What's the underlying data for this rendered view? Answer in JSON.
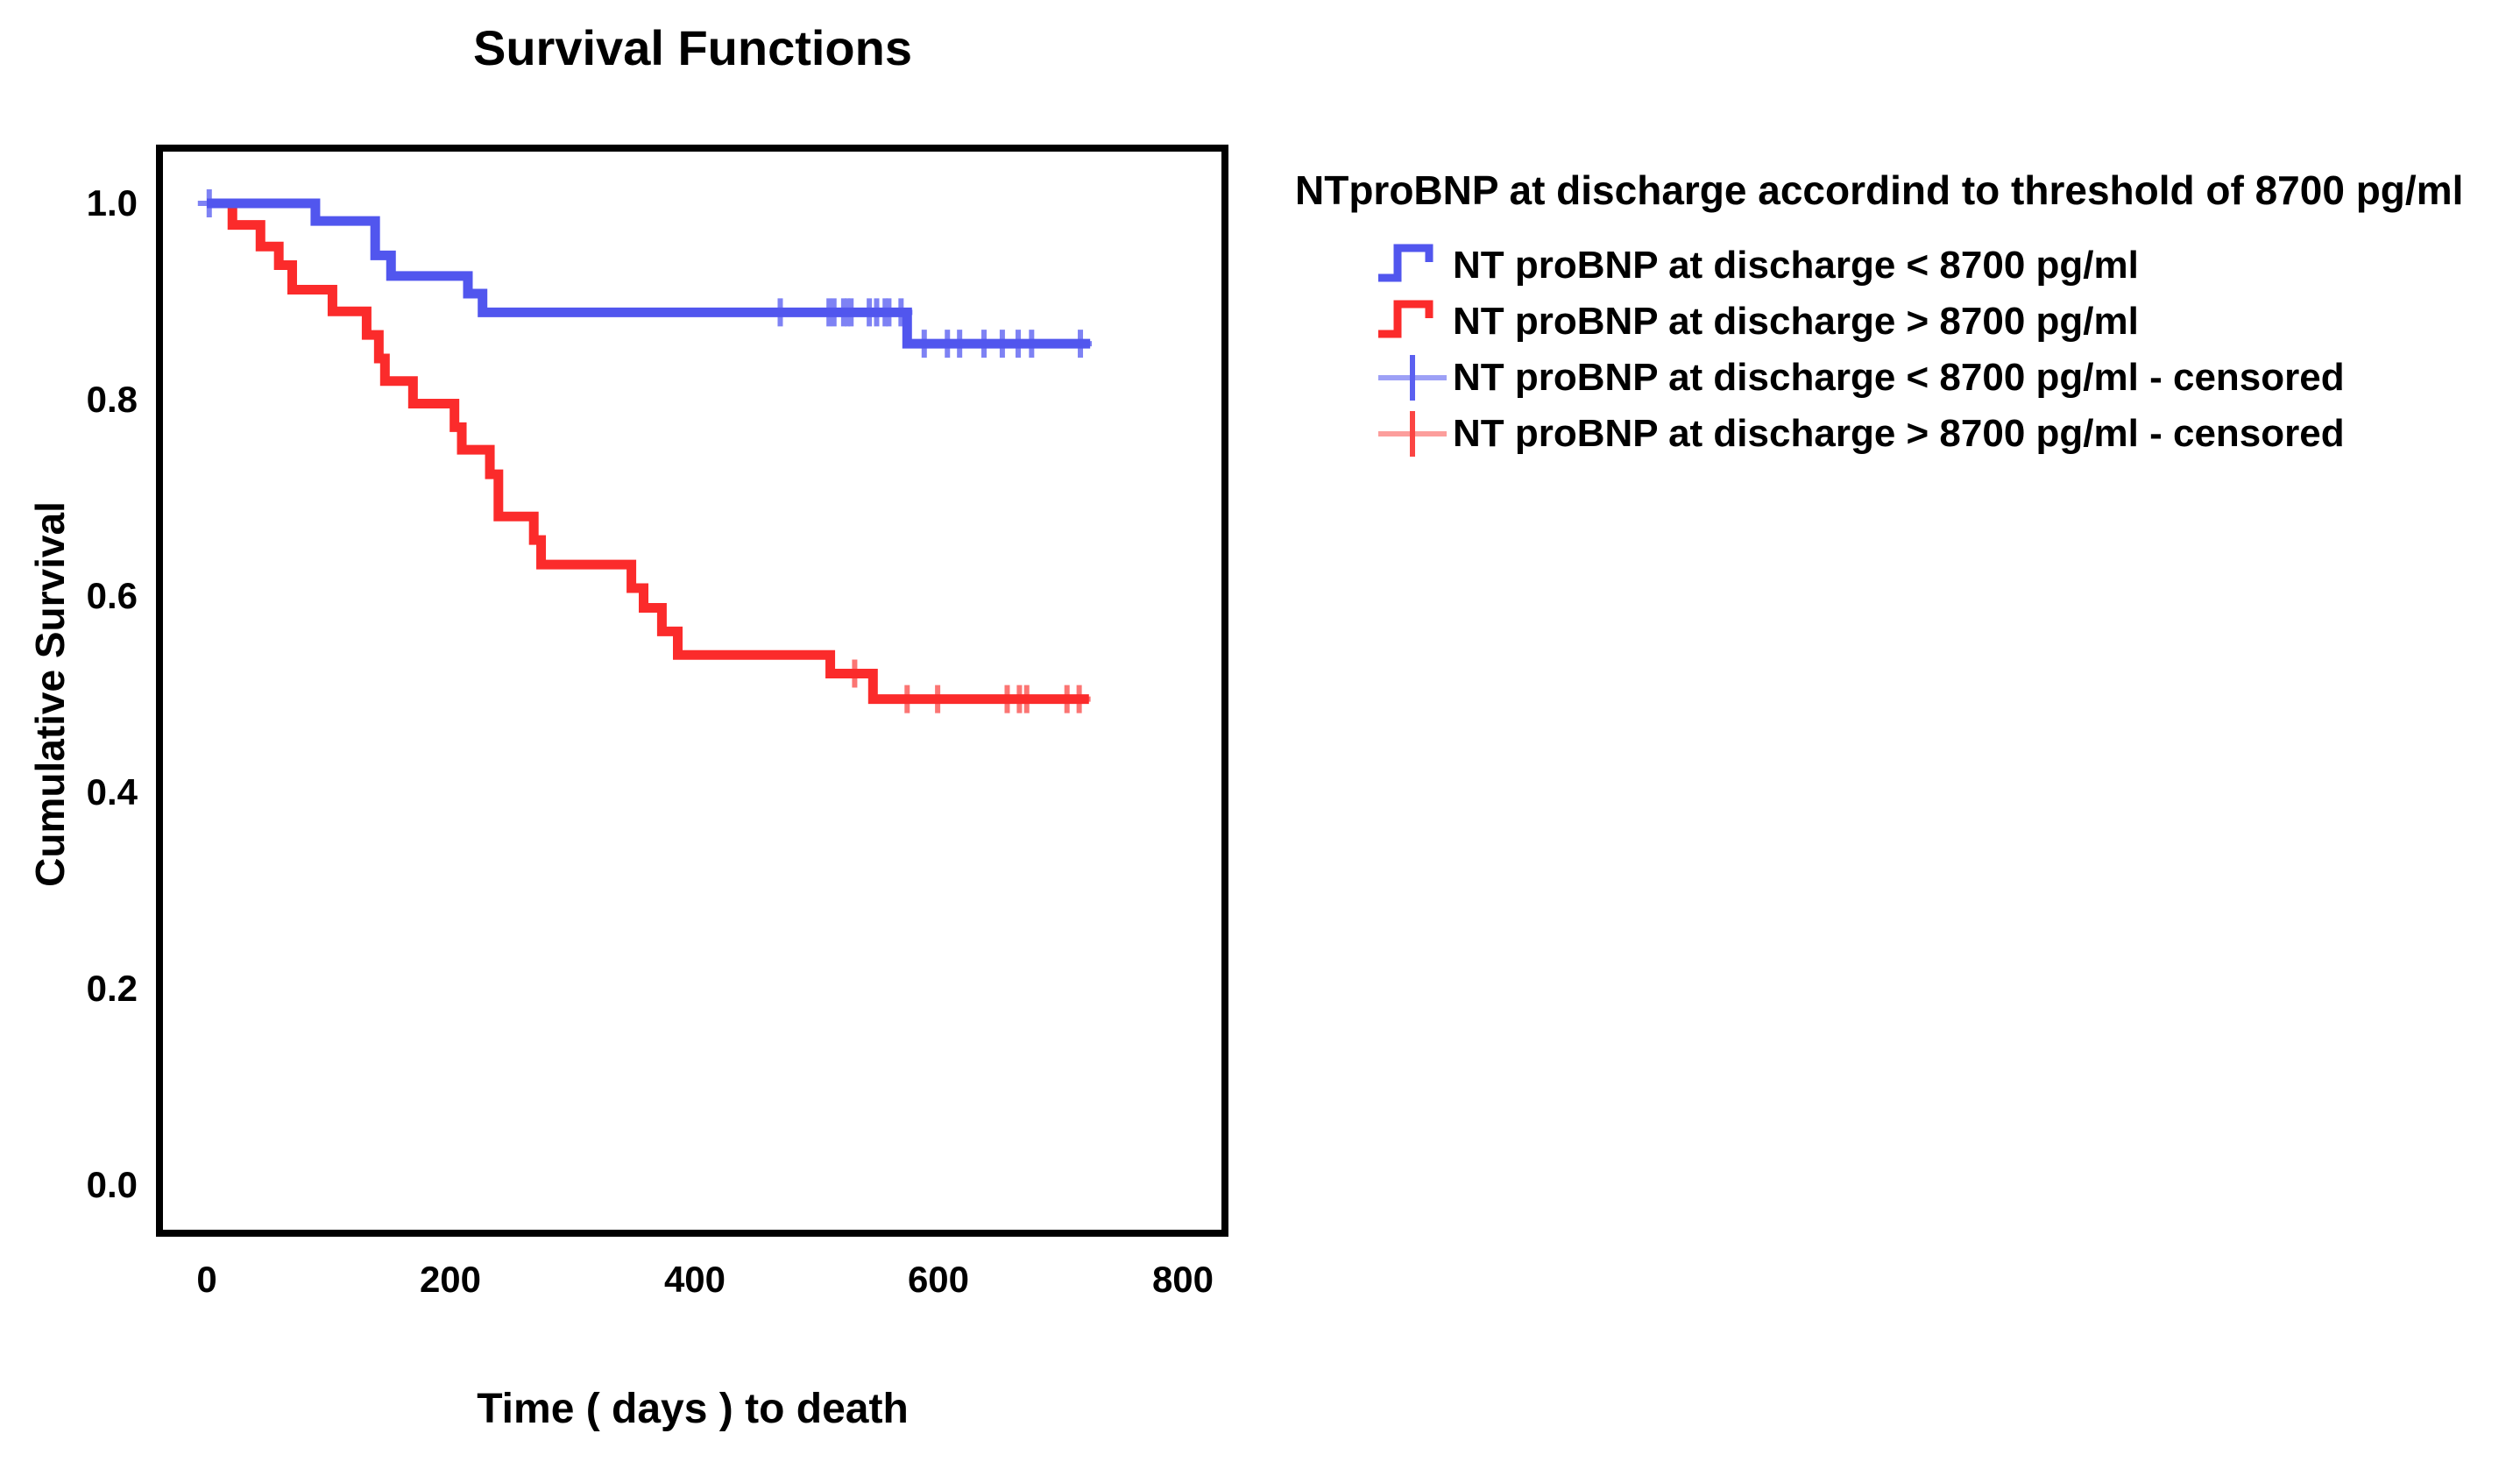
{
  "title": "Survival Functions",
  "axes": {
    "x_label": "Time ( days ) to death",
    "y_label": "Cumulative Survival",
    "x_ticks": [
      "0",
      "200",
      "400",
      "600",
      "800"
    ],
    "y_ticks": [
      "1.0",
      "0.8",
      "0.6",
      "0.4",
      "0.2",
      "0.0"
    ]
  },
  "legend": {
    "title": "NTproBNP at discharge accordind to threshold of 8700 pg/ml",
    "items": [
      {
        "label": "NT proBNP at discharge < 8700 pg/ml",
        "glyph": "step-line",
        "color": "#5156ee"
      },
      {
        "label": "NT proBNP at discharge > 8700 pg/ml",
        "glyph": "step-line",
        "color": "#fb2b2b"
      },
      {
        "label": "NT proBNP at discharge < 8700 pg/ml - censored",
        "glyph": "plus-cross",
        "color": "#9da0f6",
        "core_color": "#5b60f0"
      },
      {
        "label": "NT proBNP at discharge > 8700 pg/ml - censored",
        "glyph": "plus-cross",
        "color": "#fc9e9c",
        "core_color": "#fb4543"
      }
    ]
  },
  "chart_data": {
    "type": "line",
    "subtype": "kaplan-meier-step",
    "title": "Survival Functions",
    "xlabel": "Time ( days ) to death",
    "ylabel": "Cumulative Survival",
    "xlim": [
      0,
      836
    ],
    "ylim": [
      -0.07,
      1.06
    ],
    "x_ticks": [
      0,
      200,
      400,
      600,
      800
    ],
    "y_ticks": [
      1.0,
      0.8,
      0.6,
      0.4,
      0.2,
      0.0
    ],
    "grid": false,
    "legend_position": "right",
    "frame_color": "#000000",
    "series": [
      {
        "name": "NT proBNP at discharge < 8700 pg/ml",
        "color": "#5156ee",
        "censor_color": "#7e82f4",
        "steps": [
          [
            0,
            1.0
          ],
          [
            89,
            0.982
          ],
          [
            138,
            0.947
          ],
          [
            151,
            0.926
          ],
          [
            214,
            0.908
          ],
          [
            226,
            0.889
          ],
          [
            574,
            0.857
          ]
        ],
        "end_time": 724,
        "censored": [
          [
            2,
            1.0
          ],
          [
            470,
            0.889
          ],
          [
            510,
            0.889
          ],
          [
            514,
            0.889
          ],
          [
            522,
            0.889
          ],
          [
            525,
            0.889
          ],
          [
            528,
            0.889
          ],
          [
            543,
            0.889
          ],
          [
            549,
            0.889
          ],
          [
            556,
            0.889
          ],
          [
            559,
            0.889
          ],
          [
            569,
            0.889
          ],
          [
            588,
            0.857
          ],
          [
            607,
            0.857
          ],
          [
            617,
            0.857
          ],
          [
            637,
            0.857
          ],
          [
            652,
            0.857
          ],
          [
            665,
            0.857
          ],
          [
            676,
            0.857
          ],
          [
            716,
            0.857
          ]
        ]
      },
      {
        "name": "NT proBNP at discharge > 8700 pg/ml",
        "color": "#fb2b2b",
        "censor_color": "#fb7573",
        "steps": [
          [
            0,
            1.0
          ],
          [
            21,
            0.978
          ],
          [
            44,
            0.956
          ],
          [
            59,
            0.937
          ],
          [
            70,
            0.912
          ],
          [
            103,
            0.89
          ],
          [
            131,
            0.866
          ],
          [
            141,
            0.842
          ],
          [
            146,
            0.819
          ],
          [
            169,
            0.796
          ],
          [
            203,
            0.772
          ],
          [
            209,
            0.749
          ],
          [
            232,
            0.724
          ],
          [
            239,
            0.681
          ],
          [
            268,
            0.657
          ],
          [
            274,
            0.632
          ],
          [
            348,
            0.608
          ],
          [
            358,
            0.588
          ],
          [
            373,
            0.564
          ],
          [
            386,
            0.54
          ],
          [
            511,
            0.521
          ],
          [
            546,
            0.495
          ]
        ],
        "end_time": 723,
        "censored": [
          [
            531,
            0.521
          ],
          [
            574,
            0.495
          ],
          [
            599,
            0.495
          ],
          [
            656,
            0.495
          ],
          [
            666,
            0.495
          ],
          [
            672,
            0.495
          ],
          [
            705,
            0.495
          ],
          [
            715,
            0.495
          ]
        ]
      }
    ]
  }
}
